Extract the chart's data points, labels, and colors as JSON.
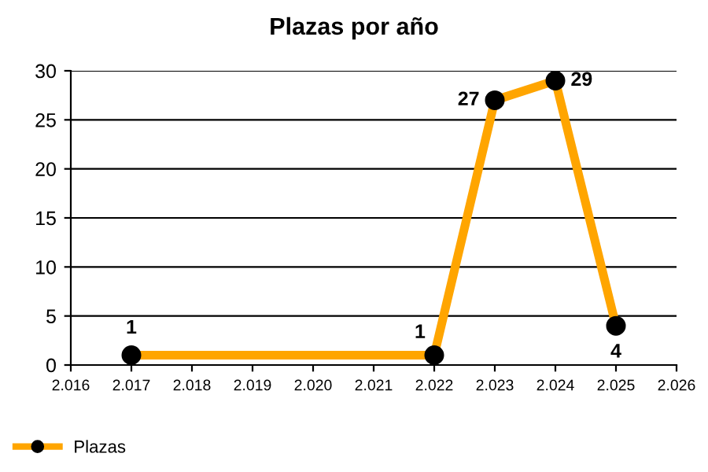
{
  "chart_data": {
    "type": "line",
    "title": "Plazas por año",
    "x": [
      2017,
      2022,
      2023,
      2024,
      2025
    ],
    "series": [
      {
        "name": "Plazas",
        "color": "#ffa500",
        "values": [
          1,
          1,
          27,
          29,
          4
        ]
      }
    ],
    "xlim": [
      2016,
      2026
    ],
    "xticks": [
      {
        "value": 2016,
        "label": "2.016"
      },
      {
        "value": 2017,
        "label": "2.017"
      },
      {
        "value": 2018,
        "label": "2.018"
      },
      {
        "value": 2019,
        "label": "2.019"
      },
      {
        "value": 2020,
        "label": "2.020"
      },
      {
        "value": 2021,
        "label": "2.021"
      },
      {
        "value": 2022,
        "label": "2.022"
      },
      {
        "value": 2023,
        "label": "2.023"
      },
      {
        "value": 2024,
        "label": "2.024"
      },
      {
        "value": 2025,
        "label": "2.025"
      },
      {
        "value": 2026,
        "label": "2.026"
      }
    ],
    "ylim": [
      0,
      30
    ],
    "yticks": [
      0,
      5,
      10,
      15,
      20,
      25,
      30
    ],
    "grid": "y",
    "legend": "bottom left",
    "marker": "circle",
    "line_style": "solid",
    "data_labels": true
  }
}
